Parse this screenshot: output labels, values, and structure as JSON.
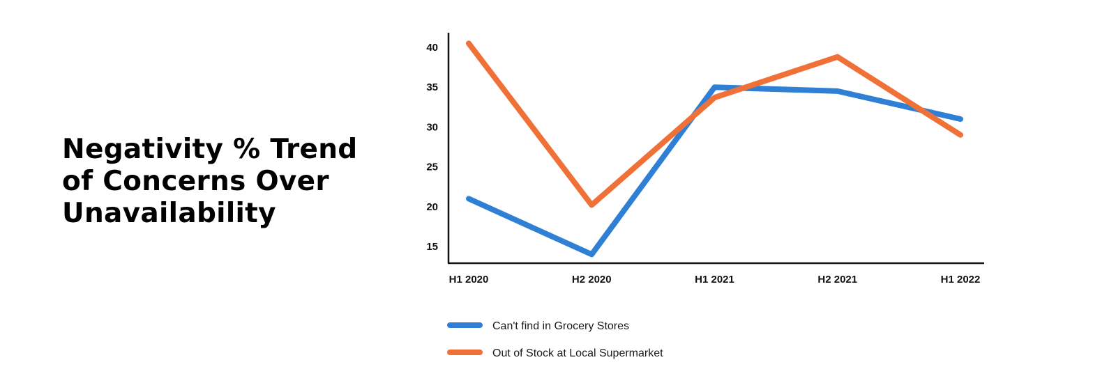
{
  "title_lines": [
    "Negativity % Trend",
    "of Concerns Over",
    "Unavailability"
  ],
  "chart_data": {
    "type": "line",
    "title": "Negativity % Trend of Concerns Over Unavailability",
    "categories": [
      "H1 2020",
      "H2 2020",
      "H1 2021",
      "H2 2021",
      "H1 2022"
    ],
    "series": [
      {
        "name": "Can't find in Grocery Stores",
        "color": "#2f80d5",
        "values": [
          21,
          14,
          35,
          34.5,
          31
        ]
      },
      {
        "name": "Out of Stock at Local Supermarket",
        "color": "#f07138",
        "values": [
          40.5,
          20.2,
          33.7,
          38.8,
          29
        ]
      }
    ],
    "yticks": [
      15,
      20,
      25,
      30,
      35,
      40
    ],
    "ylim": [
      13,
      42
    ],
    "xlabel": "",
    "ylabel": "",
    "grid": false,
    "legend_position": "bottom-left"
  }
}
